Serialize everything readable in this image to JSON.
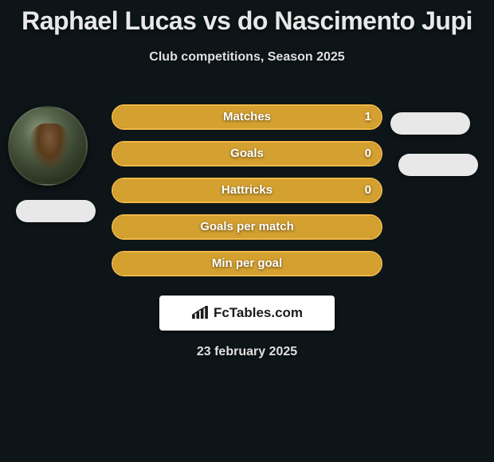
{
  "title": "Raphael Lucas vs do Nascimento Jupi",
  "subtitle": "Club competitions, Season 2025",
  "date": "23 february 2025",
  "logo_text": "FcTables.com",
  "colors": {
    "background": "#0d1518",
    "pill": "#e8e8e8",
    "logo_bg": "#ffffff",
    "logo_text": "#1a1a1a",
    "text": "#e0e0e0"
  },
  "bars": [
    {
      "label": "Matches",
      "value": "1",
      "border": "#f0b848",
      "fill": "#d4a030",
      "fill_pct": 100
    },
    {
      "label": "Goals",
      "value": "0",
      "border": "#f0b848",
      "fill": "#d4a030",
      "fill_pct": 100
    },
    {
      "label": "Hattricks",
      "value": "0",
      "border": "#f0b848",
      "fill": "#d4a030",
      "fill_pct": 100
    },
    {
      "label": "Goals per match",
      "value": "",
      "border": "#f0b848",
      "fill": "#d4a030",
      "fill_pct": 100
    },
    {
      "label": "Min per goal",
      "value": "",
      "border": "#f0b848",
      "fill": "#d4a030",
      "fill_pct": 100
    }
  ]
}
